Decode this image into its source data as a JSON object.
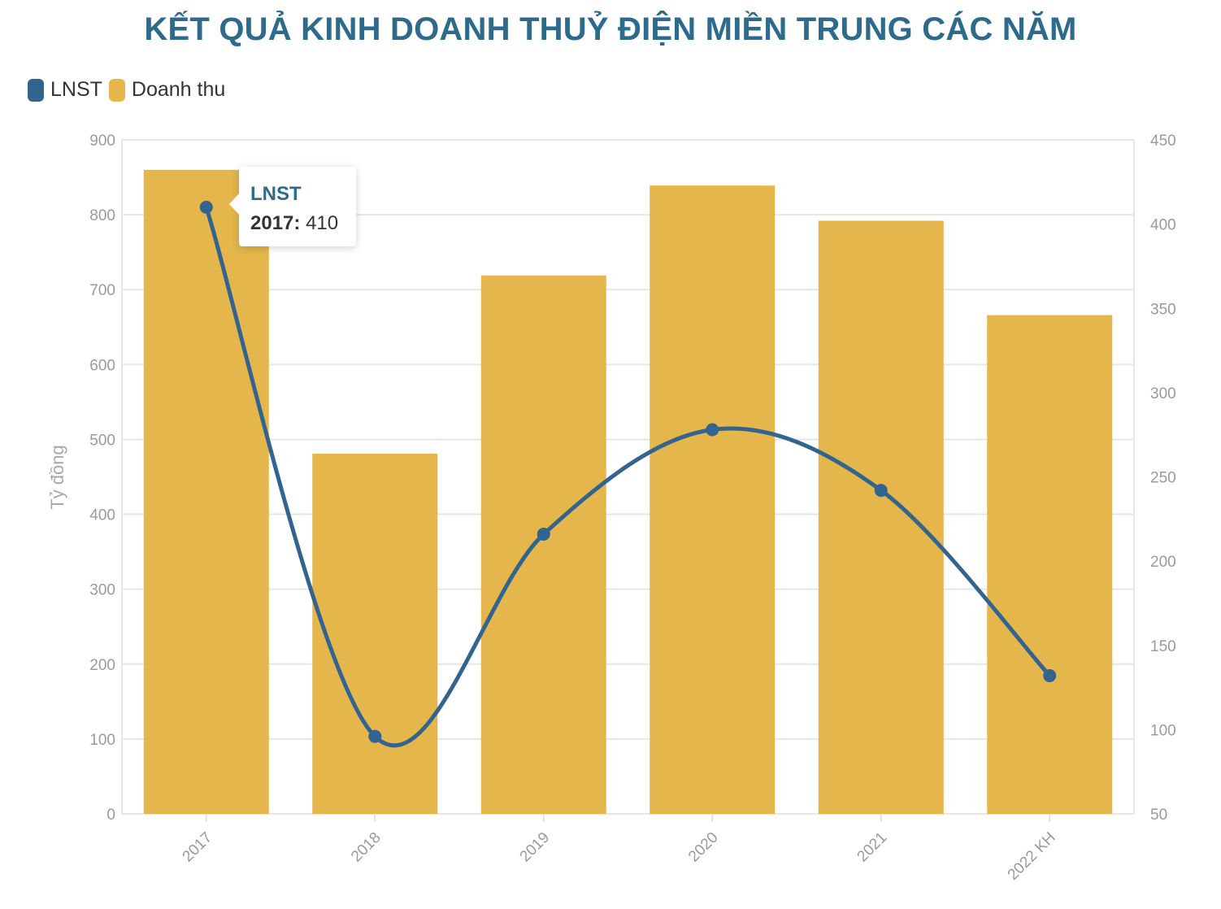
{
  "title": "KẾT QUẢ KINH DOANH THUỶ ĐIỆN MIỀN TRUNG CÁC NĂM",
  "legend": [
    {
      "label": "LNST",
      "color": "#33648f"
    },
    {
      "label": "Doanh thu",
      "color": "#e4b64b"
    }
  ],
  "tooltip": {
    "series": "LNST",
    "year": "2017:",
    "value": "410"
  },
  "chart_data": {
    "type": "bar",
    "categories": [
      "2017",
      "2018",
      "2019",
      "2020",
      "2021",
      "2022 KH"
    ],
    "series": [
      {
        "name": "Doanh thu",
        "type": "bar",
        "axis": "left",
        "color": "#e4b64b",
        "values": [
          860,
          481,
          719,
          839,
          792,
          666
        ]
      },
      {
        "name": "LNST",
        "type": "line",
        "axis": "right",
        "color": "#33648f",
        "values": [
          410,
          96,
          216,
          278,
          242,
          132
        ]
      }
    ],
    "ylabel": "Tỷ đồng",
    "ylim": [
      0,
      900
    ],
    "y_ticks": [
      "0",
      "100",
      "200",
      "300",
      "400",
      "500",
      "600",
      "700",
      "800",
      "900"
    ],
    "y2lim": [
      50,
      450
    ],
    "y2_ticks": [
      "50",
      "100",
      "150",
      "200",
      "250",
      "300",
      "350",
      "400",
      "450"
    ],
    "grid": true,
    "legend_position": "top-left"
  }
}
